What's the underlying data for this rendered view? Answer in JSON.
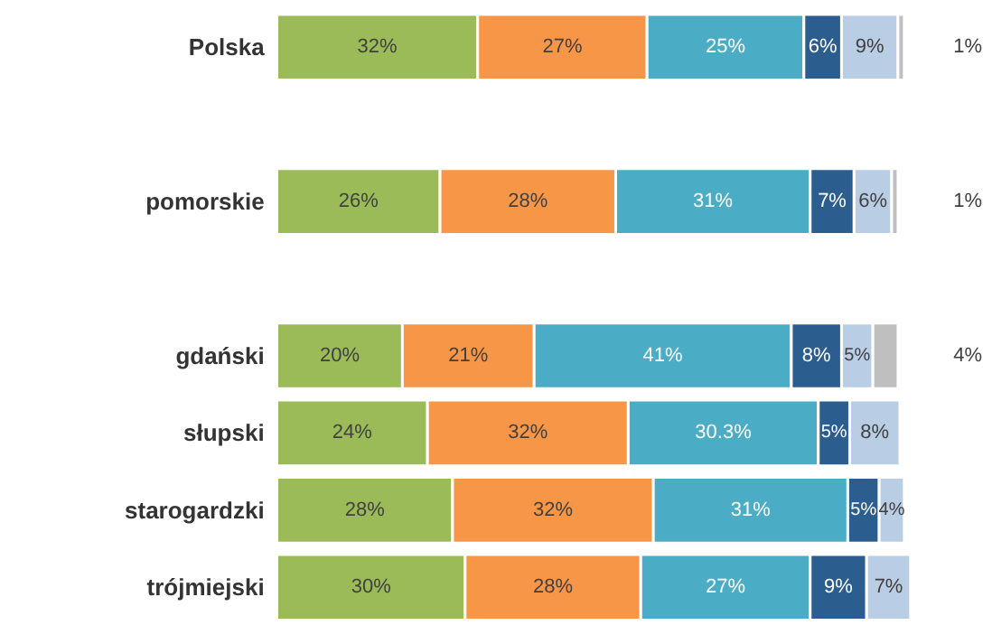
{
  "chart_data": {
    "type": "bar",
    "orientation": "horizontal",
    "stacked": true,
    "categories": [
      "Polska",
      null,
      "pomorskie",
      null,
      "gdański",
      "słupski",
      "starogardzki",
      "trójmiejski"
    ],
    "series": [
      {
        "color": "#9bbb59",
        "values": [
          32,
          null,
          26,
          null,
          20,
          24,
          28,
          30
        ],
        "value_labels": [
          "32%",
          null,
          "26%",
          null,
          "20%",
          "24%",
          "28%",
          "30%"
        ]
      },
      {
        "color": "#f79646",
        "values": [
          27,
          null,
          28,
          null,
          21,
          32,
          32,
          28
        ],
        "value_labels": [
          "27%",
          null,
          "28%",
          null,
          "21%",
          "32%",
          "32%",
          "28%"
        ]
      },
      {
        "color": "#4bacc6",
        "values": [
          25,
          null,
          31,
          null,
          41,
          30.3,
          31,
          27
        ],
        "value_labels": [
          "25%",
          null,
          "31%",
          null,
          "41%",
          "30.3%",
          "31%",
          "27%"
        ]
      },
      {
        "color": "#2c5d8f",
        "values": [
          6,
          null,
          7,
          null,
          8,
          5,
          5,
          9
        ],
        "value_labels": [
          "6%",
          null,
          "7%",
          null,
          "8%",
          "5%",
          "5%",
          "9%"
        ]
      },
      {
        "color": "#b9cde5",
        "values": [
          9,
          null,
          6,
          null,
          5,
          8,
          4,
          7
        ],
        "value_labels": [
          "9%",
          null,
          "6%",
          null,
          "5%",
          "8%",
          "4%",
          "7%"
        ]
      },
      {
        "color": "#bfbfbf",
        "values": [
          1,
          null,
          1,
          null,
          4,
          null,
          null,
          null
        ],
        "value_labels": [
          "1%",
          null,
          "1%",
          null,
          "4%",
          null,
          null,
          null
        ]
      }
    ]
  }
}
